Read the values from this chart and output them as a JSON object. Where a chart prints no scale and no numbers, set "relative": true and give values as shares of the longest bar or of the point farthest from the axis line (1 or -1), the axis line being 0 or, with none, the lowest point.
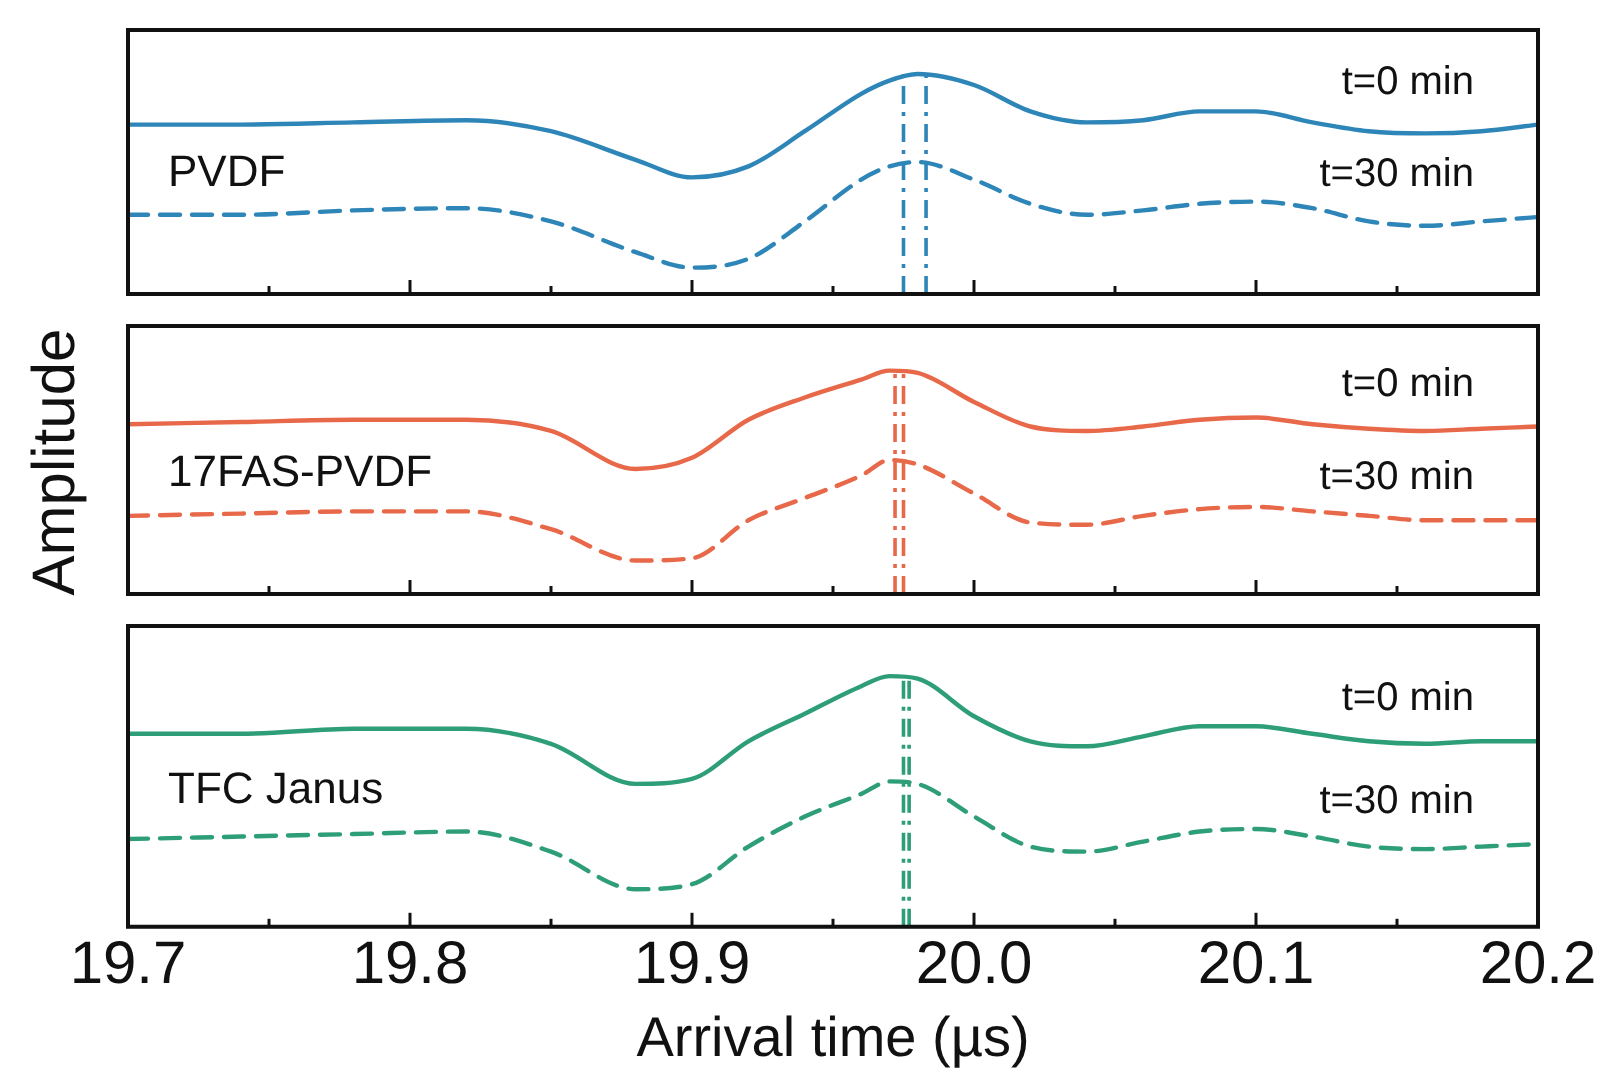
{
  "chart_data": [
    {
      "type": "line",
      "relative": true,
      "annotations": [
        "PVDF"
      ],
      "xlim": [
        19.7,
        20.2
      ],
      "tick_labels": false,
      "legend": false,
      "grid": false,
      "xticks": [
        19.7,
        {
          "value": 19.75,
          "label": null
        },
        19.8,
        {
          "value": 19.85,
          "label": null
        },
        19.9,
        {
          "value": 19.95,
          "label": null
        },
        20.0,
        {
          "value": 20.05,
          "label": null
        },
        20.1,
        {
          "value": 20.15,
          "label": null
        },
        20.2
      ],
      "x": [
        19.7,
        19.74,
        19.78,
        19.82,
        19.85,
        19.88,
        19.9,
        19.92,
        19.94,
        19.96,
        19.97,
        19.98,
        20.0,
        20.02,
        20.04,
        20.06,
        20.08,
        20.1,
        20.12,
        20.14,
        20.16,
        20.18,
        20.2
      ],
      "series": [
        {
          "name": "t=0 min",
          "color": "#2e86b8",
          "line_style": "solid",
          "values": [
            0.77,
            0.77,
            0.78,
            0.79,
            0.74,
            0.61,
            0.53,
            0.58,
            0.74,
            0.91,
            0.97,
            1.0,
            0.95,
            0.83,
            0.78,
            0.79,
            0.83,
            0.83,
            0.78,
            0.74,
            0.73,
            0.74,
            0.77
          ]
        },
        {
          "name": "t=30 min",
          "color": "#2e86b8",
          "line_style": "dashed",
          "values": [
            0.36,
            0.36,
            0.38,
            0.39,
            0.33,
            0.19,
            0.12,
            0.16,
            0.33,
            0.52,
            0.58,
            0.6,
            0.52,
            0.41,
            0.36,
            0.38,
            0.41,
            0.42,
            0.39,
            0.33,
            0.31,
            0.33,
            0.35
          ]
        }
      ],
      "ref_lines": [
        {
          "axis": "x",
          "value": 19.975,
          "color": "#2e86b8",
          "line_style": "dashdot"
        },
        {
          "axis": "x",
          "value": 19.983,
          "color": "#2e86b8",
          "line_style": "dashdot"
        }
      ]
    },
    {
      "type": "line",
      "relative": true,
      "ylabel": "Amplitude",
      "annotations": [
        "17FAS-PVDF"
      ],
      "xlim": [
        19.7,
        20.2
      ],
      "tick_labels": false,
      "legend": false,
      "grid": false,
      "xticks": [
        19.7,
        {
          "value": 19.75,
          "label": null
        },
        19.8,
        {
          "value": 19.85,
          "label": null
        },
        19.9,
        {
          "value": 19.95,
          "label": null
        },
        20.0,
        {
          "value": 20.05,
          "label": null
        },
        20.1,
        {
          "value": 20.15,
          "label": null
        },
        20.2
      ],
      "x": [
        19.7,
        19.74,
        19.78,
        19.82,
        19.85,
        19.88,
        19.9,
        19.92,
        19.94,
        19.96,
        19.97,
        19.98,
        20.0,
        20.02,
        20.04,
        20.06,
        20.08,
        20.1,
        20.12,
        20.14,
        20.16,
        20.18,
        20.2
      ],
      "series": [
        {
          "name": "t=0 min",
          "color": "#e8684a",
          "line_style": "solid",
          "values": [
            0.76,
            0.77,
            0.78,
            0.78,
            0.73,
            0.56,
            0.61,
            0.78,
            0.88,
            0.96,
            1.0,
            0.99,
            0.86,
            0.75,
            0.73,
            0.75,
            0.78,
            0.79,
            0.76,
            0.74,
            0.73,
            0.74,
            0.75
          ]
        },
        {
          "name": "t=30 min",
          "color": "#e8684a",
          "line_style": "dashed",
          "values": [
            0.35,
            0.36,
            0.37,
            0.37,
            0.29,
            0.15,
            0.16,
            0.33,
            0.43,
            0.53,
            0.6,
            0.58,
            0.45,
            0.32,
            0.31,
            0.35,
            0.38,
            0.39,
            0.37,
            0.35,
            0.33,
            0.33,
            0.33
          ]
        }
      ],
      "ref_lines": [
        {
          "axis": "x",
          "value": 19.972,
          "color": "#e8684a",
          "line_style": "dashdot"
        },
        {
          "axis": "x",
          "value": 19.975,
          "color": "#e8684a",
          "line_style": "dashdot"
        }
      ]
    },
    {
      "type": "line",
      "relative": true,
      "xlabel": "Arrival time (µs)",
      "annotations": [
        "TFC Janus"
      ],
      "xlim": [
        19.7,
        20.2
      ],
      "legend": false,
      "grid": false,
      "tick_labels": "x",
      "xticks": [
        19.7,
        {
          "value": 19.75,
          "label": null
        },
        19.8,
        {
          "value": 19.85,
          "label": null
        },
        19.9,
        {
          "value": 19.95,
          "label": null
        },
        {
          "value": 20.0,
          "label": "20.0"
        },
        {
          "value": 20.05,
          "label": null
        },
        20.1,
        {
          "value": 20.15,
          "label": null
        },
        20.2
      ],
      "x": [
        19.7,
        19.74,
        19.78,
        19.82,
        19.85,
        19.88,
        19.9,
        19.92,
        19.94,
        19.96,
        19.97,
        19.98,
        20.0,
        20.02,
        20.04,
        20.06,
        20.08,
        20.1,
        20.12,
        20.14,
        20.16,
        20.18,
        20.2
      ],
      "series": [
        {
          "name": "t=0 min",
          "color": "#2e9e78",
          "line_style": "solid",
          "values": [
            0.77,
            0.77,
            0.79,
            0.79,
            0.73,
            0.57,
            0.59,
            0.74,
            0.85,
            0.96,
            1.0,
            0.99,
            0.84,
            0.74,
            0.72,
            0.76,
            0.8,
            0.8,
            0.77,
            0.74,
            0.73,
            0.74,
            0.74
          ]
        },
        {
          "name": "t=30 min",
          "color": "#2e9e78",
          "line_style": "dashed",
          "values": [
            0.35,
            0.36,
            0.37,
            0.38,
            0.3,
            0.15,
            0.17,
            0.32,
            0.44,
            0.53,
            0.58,
            0.57,
            0.44,
            0.32,
            0.3,
            0.34,
            0.38,
            0.39,
            0.36,
            0.32,
            0.31,
            0.32,
            0.33
          ]
        }
      ],
      "ref_lines": [
        {
          "axis": "x",
          "value": 19.975,
          "color": "#2e9e78",
          "line_style": "dashdot"
        },
        {
          "axis": "x",
          "value": 19.977,
          "color": "#2e9e78",
          "line_style": "dashdot"
        }
      ]
    }
  ]
}
